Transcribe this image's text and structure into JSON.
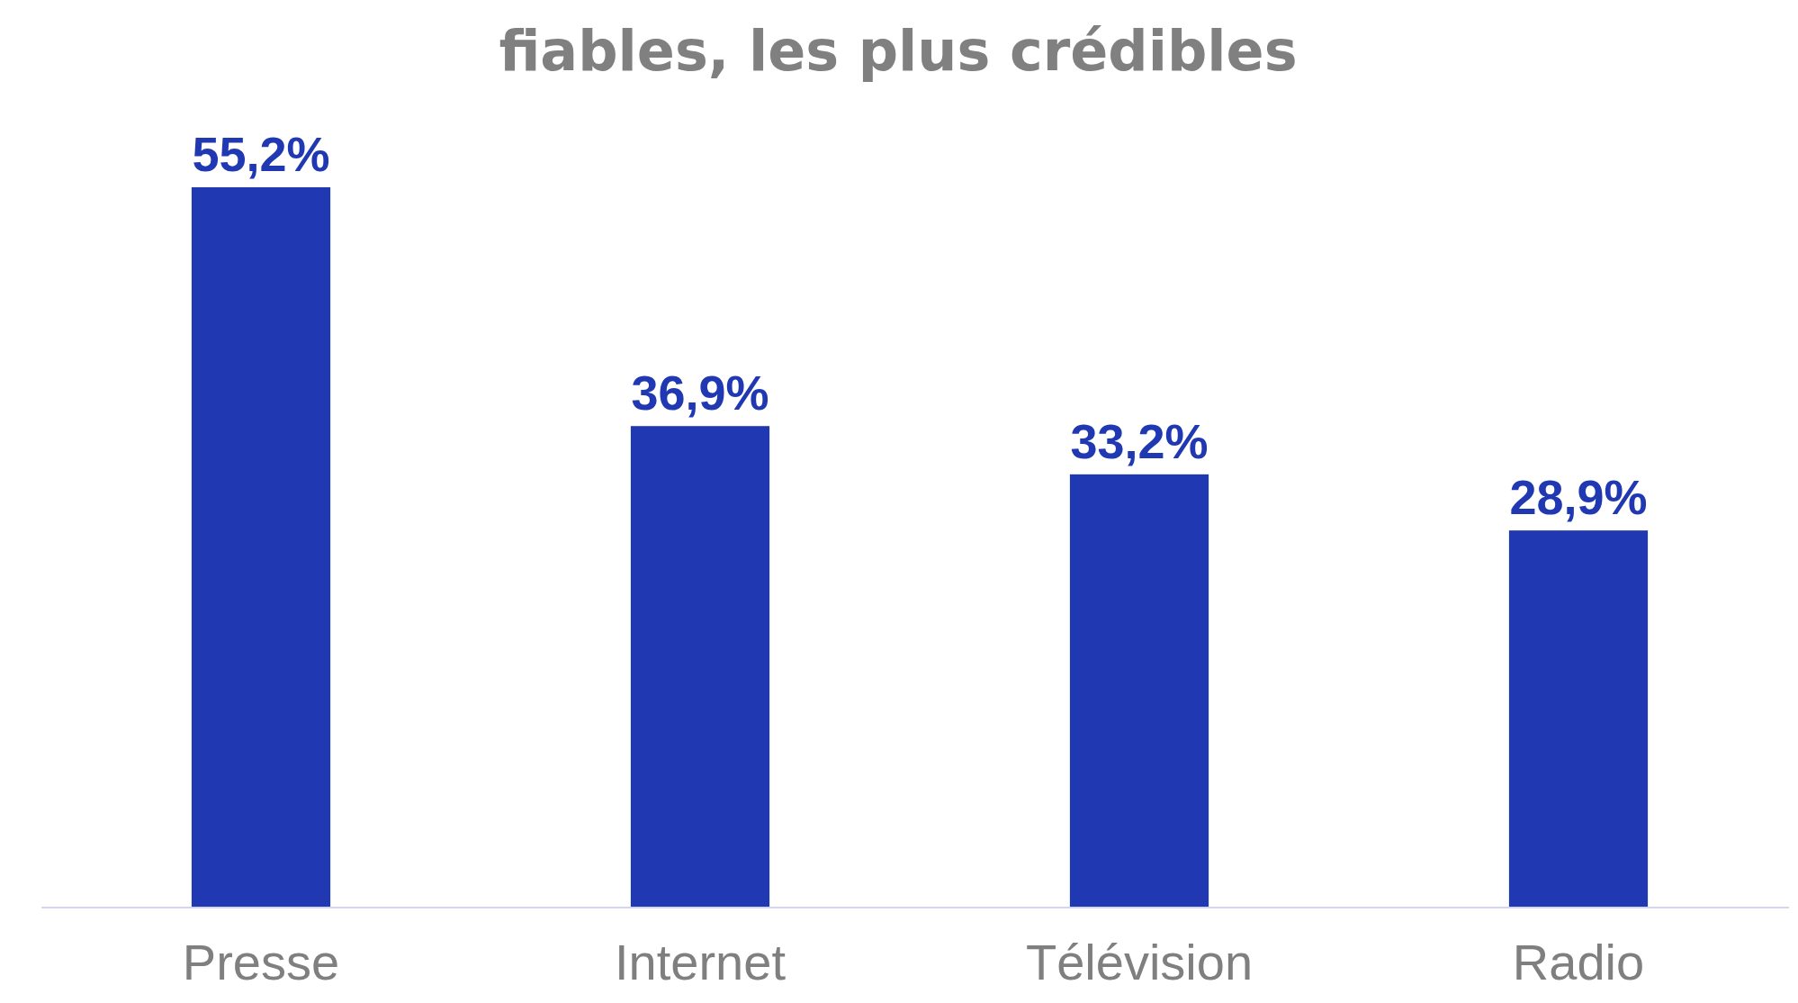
{
  "chart_data": {
    "type": "bar",
    "title": "fiables, les plus crédibles",
    "categories": [
      "Presse",
      "Internet",
      "Télévision",
      "Radio"
    ],
    "values": [
      55.2,
      36.9,
      33.2,
      28.9
    ],
    "value_labels": [
      "55,2%",
      "36,9%",
      "33,2%",
      "28,9%"
    ],
    "color": "#2039b3"
  }
}
